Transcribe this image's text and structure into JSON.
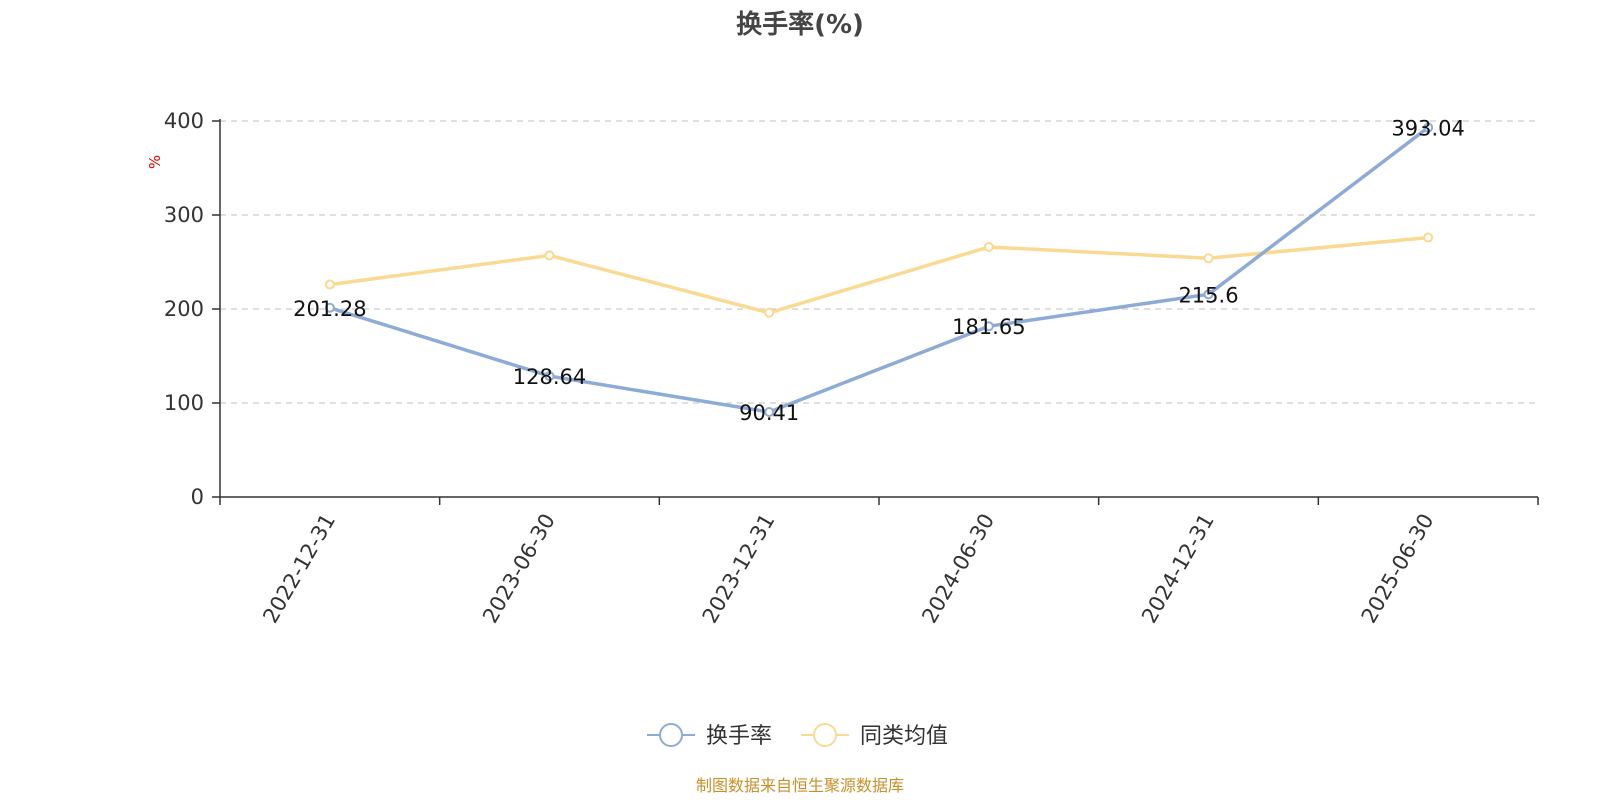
{
  "chart_data": {
    "type": "line",
    "title": "换手率(%)",
    "ylabel": "%",
    "xlabel": "",
    "categories": [
      "2022-12-31",
      "2023-06-30",
      "2023-12-31",
      "2024-06-30",
      "2024-12-31",
      "2025-06-30"
    ],
    "ylim": [
      0,
      400
    ],
    "yticks": [
      0,
      100,
      200,
      300,
      400
    ],
    "grid": true,
    "legend_position": "bottom-center",
    "series": [
      {
        "name": "换手率",
        "color": "#8eaad6",
        "values": [
          201.28,
          128.64,
          90.41,
          181.65,
          215.6,
          393.04
        ],
        "labels": [
          "201.28",
          "128.64",
          "90.41",
          "181.65",
          "215.6",
          "393.04"
        ]
      },
      {
        "name": "同类均值",
        "color": "#fad993",
        "values": [
          226,
          257,
          196,
          266,
          254,
          276
        ],
        "labels": []
      }
    ]
  },
  "source_note": "制图数据来自恒生聚源数据库"
}
